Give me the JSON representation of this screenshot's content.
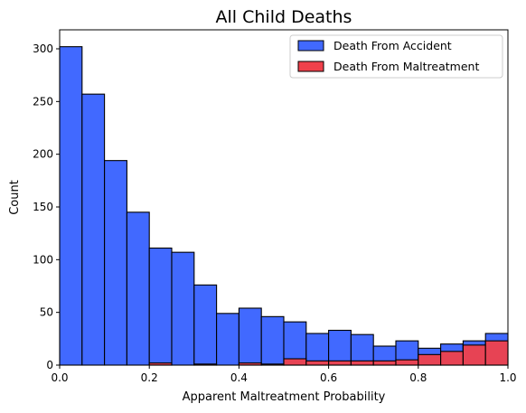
{
  "chart_data": {
    "type": "bar",
    "title": "All Child Deaths",
    "xlabel": "Apparent Maltreatment Probability",
    "ylabel": "Count",
    "xlim": [
      0,
      1.0
    ],
    "ylim": [
      0,
      318
    ],
    "x_ticks": [
      {
        "value": 0.0,
        "label": "0.0"
      },
      {
        "value": 0.2,
        "label": "0.2"
      },
      {
        "value": 0.4,
        "label": "0.4"
      },
      {
        "value": 0.6,
        "label": "0.6"
      },
      {
        "value": 0.8,
        "label": "0.8"
      },
      {
        "value": 1.0,
        "label": "1.0"
      }
    ],
    "y_ticks": [
      {
        "value": 0,
        "label": "0"
      },
      {
        "value": 50,
        "label": "50"
      },
      {
        "value": 100,
        "label": "100"
      },
      {
        "value": 150,
        "label": "150"
      },
      {
        "value": 200,
        "label": "200"
      },
      {
        "value": 250,
        "label": "250"
      },
      {
        "value": 300,
        "label": "300"
      }
    ],
    "bin_edges": [
      0.0,
      0.05,
      0.1,
      0.15,
      0.2,
      0.25,
      0.3,
      0.35,
      0.4,
      0.45,
      0.5,
      0.55,
      0.6,
      0.65,
      0.7,
      0.75,
      0.8,
      0.85,
      0.9,
      0.95,
      1.0
    ],
    "series": [
      {
        "name": "Death From Accident",
        "color": "#4169ff",
        "values": [
          302,
          257,
          194,
          145,
          111,
          107,
          76,
          49,
          54,
          46,
          41,
          30,
          33,
          29,
          18,
          23,
          16,
          20,
          23,
          30
        ]
      },
      {
        "name": "Death From Maltreatment",
        "color": "#f0414b",
        "values": [
          0,
          0,
          0,
          0,
          2,
          0,
          1,
          0,
          2,
          1,
          6,
          4,
          4,
          4,
          4,
          5,
          10,
          13,
          19,
          23
        ]
      }
    ],
    "legend_position": "top-right",
    "grid": false
  }
}
